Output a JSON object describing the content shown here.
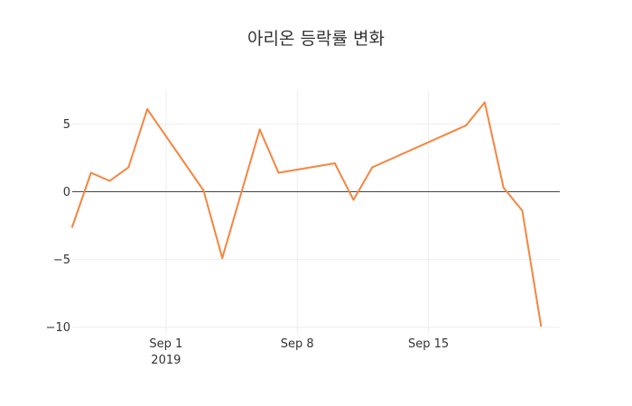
{
  "chart_data": {
    "type": "line",
    "title": "아리온 등락률 변화",
    "xlabel": "",
    "ylabel": "",
    "x_axis_type": "date",
    "xlim": [
      "2019-08-27",
      "2019-09-22"
    ],
    "ylim": [
      -10.5,
      7.5
    ],
    "x_ticks": [
      {
        "date": "2019-09-01",
        "label": "Sep 1",
        "sublabel": "2019"
      },
      {
        "date": "2019-09-08",
        "label": "Sep 8",
        "sublabel": ""
      },
      {
        "date": "2019-09-15",
        "label": "Sep 15",
        "sublabel": ""
      }
    ],
    "y_ticks": [
      {
        "value": 5,
        "label": "5"
      },
      {
        "value": 0,
        "label": "0"
      },
      {
        "value": -5,
        "label": "−5"
      },
      {
        "value": -10,
        "label": "−10"
      }
    ],
    "grid": true,
    "zero_line": true,
    "legend": "none",
    "series": [
      {
        "color": "#f5853f",
        "points": [
          {
            "x": "2019-08-27",
            "y": -2.6
          },
          {
            "x": "2019-08-28",
            "y": 1.4
          },
          {
            "x": "2019-08-29",
            "y": 0.8
          },
          {
            "x": "2019-08-30",
            "y": 1.8
          },
          {
            "x": "2019-08-31",
            "y": 6.1
          },
          {
            "x": "2019-09-03",
            "y": 0.1
          },
          {
            "x": "2019-09-04",
            "y": -4.9
          },
          {
            "x": "2019-09-06",
            "y": 4.6
          },
          {
            "x": "2019-09-07",
            "y": 1.4
          },
          {
            "x": "2019-09-10",
            "y": 2.1
          },
          {
            "x": "2019-09-11",
            "y": -0.6
          },
          {
            "x": "2019-09-12",
            "y": 1.8
          },
          {
            "x": "2019-09-17",
            "y": 4.9
          },
          {
            "x": "2019-09-18",
            "y": 6.6
          },
          {
            "x": "2019-09-19",
            "y": 0.3
          },
          {
            "x": "2019-09-20",
            "y": -1.4
          },
          {
            "x": "2019-09-21",
            "y": -9.9
          }
        ]
      }
    ]
  }
}
